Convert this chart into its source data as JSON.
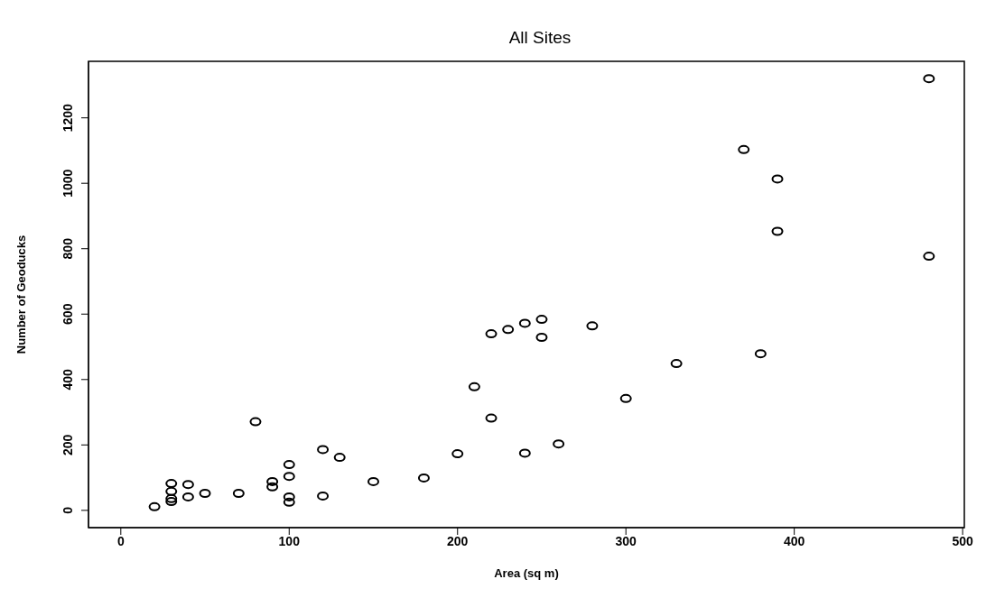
{
  "chart_data": {
    "type": "scatter",
    "title": "All Sites",
    "xlabel": "Area (sq m)",
    "ylabel": "Number of Geoducks",
    "x": [
      20,
      30,
      30,
      30,
      30,
      40,
      40,
      50,
      70,
      80,
      90,
      90,
      100,
      100,
      100,
      100,
      120,
      120,
      130,
      150,
      180,
      200,
      210,
      220,
      220,
      230,
      240,
      240,
      250,
      250,
      260,
      280,
      300,
      330,
      370,
      380,
      390,
      390,
      480,
      480
    ],
    "series": [
      {
        "color": "#000000",
        "values": [
          11,
          82,
          58,
          36,
          27,
          79,
          41,
          52,
          52,
          271,
          88,
          72,
          140,
          104,
          41,
          25,
          186,
          44,
          162,
          88,
          99,
          173,
          378,
          282,
          540,
          553,
          572,
          175,
          584,
          529,
          203,
          564,
          342,
          449,
          1103,
          479,
          1013,
          853,
          1320,
          777
        ]
      }
    ],
    "xlim": [
      -19.2,
      501
    ],
    "ylim": [
      -52.8,
      1372.8
    ],
    "xticks": [
      0,
      100,
      200,
      300,
      400,
      500
    ],
    "yticks": [
      0,
      200,
      400,
      600,
      800,
      1000,
      1200
    ],
    "marker": "circle"
  }
}
